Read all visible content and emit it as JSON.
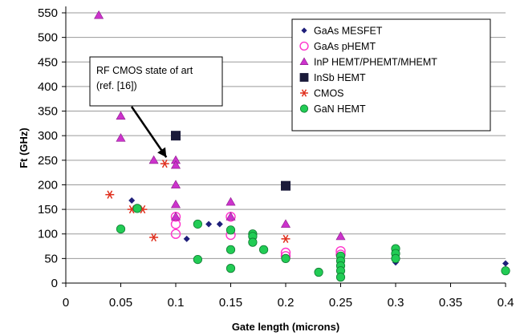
{
  "chart_data": {
    "type": "scatter",
    "xlabel": "Gate length (microns)",
    "ylabel": "Ft (GHz)",
    "xlim": [
      0,
      0.4
    ],
    "ylim": [
      0,
      550
    ],
    "x_ticks": [
      "0",
      "0.05",
      "0.1",
      "0.15",
      "0.2",
      "0.25",
      "0.3",
      "0.35",
      "0.4"
    ],
    "y_ticks": [
      "0",
      "50",
      "100",
      "150",
      "200",
      "250",
      "300",
      "350",
      "400",
      "450",
      "500",
      "550"
    ],
    "legend_position": "top-right",
    "annotation": {
      "lines": [
        "RF CMOS state of art",
        "(ref. [16])"
      ],
      "arrow_to": [
        0.09,
        243
      ]
    },
    "series": [
      {
        "name": "GaAs MESFET",
        "marker": "diamond",
        "color": "#1f1f7a",
        "points": [
          [
            0.06,
            168
          ],
          [
            0.11,
            90
          ],
          [
            0.13,
            120
          ],
          [
            0.14,
            120
          ],
          [
            0.25,
            55
          ],
          [
            0.3,
            42
          ],
          [
            0.4,
            40
          ]
        ]
      },
      {
        "name": "GaAs pHEMT",
        "marker": "open-circle",
        "color": "#ff33cc",
        "points": [
          [
            0.1,
            100
          ],
          [
            0.1,
            120
          ],
          [
            0.1,
            135
          ],
          [
            0.15,
            135
          ],
          [
            0.15,
            98
          ],
          [
            0.2,
            62
          ],
          [
            0.2,
            55
          ],
          [
            0.25,
            65
          ],
          [
            0.25,
            58
          ]
        ]
      },
      {
        "name": "InP HEMT/PHEMT/MHEMT",
        "marker": "triangle",
        "color": "#cc33cc",
        "points": [
          [
            0.03,
            545
          ],
          [
            0.05,
            340
          ],
          [
            0.05,
            295
          ],
          [
            0.08,
            250
          ],
          [
            0.1,
            250
          ],
          [
            0.1,
            240
          ],
          [
            0.1,
            200
          ],
          [
            0.1,
            160
          ],
          [
            0.1,
            135
          ],
          [
            0.15,
            165
          ],
          [
            0.15,
            135
          ],
          [
            0.2,
            120
          ],
          [
            0.25,
            95
          ]
        ]
      },
      {
        "name": "InSb HEMT",
        "marker": "square",
        "color": "#1a1a3a",
        "points": [
          [
            0.1,
            300
          ],
          [
            0.2,
            198
          ]
        ]
      },
      {
        "name": "CMOS",
        "marker": "asterisk",
        "color": "#e0301e",
        "points": [
          [
            0.04,
            180
          ],
          [
            0.06,
            150
          ],
          [
            0.07,
            150
          ],
          [
            0.08,
            93
          ],
          [
            0.09,
            243
          ],
          [
            0.2,
            90
          ]
        ]
      },
      {
        "name": "GaN HEMT",
        "marker": "filled-circle",
        "color": "#22cc55",
        "points": [
          [
            0.05,
            110
          ],
          [
            0.065,
            152
          ],
          [
            0.12,
            120
          ],
          [
            0.12,
            48
          ],
          [
            0.15,
            108
          ],
          [
            0.15,
            68
          ],
          [
            0.15,
            30
          ],
          [
            0.17,
            100
          ],
          [
            0.17,
            95
          ],
          [
            0.17,
            83
          ],
          [
            0.18,
            68
          ],
          [
            0.2,
            50
          ],
          [
            0.23,
            22
          ],
          [
            0.25,
            55
          ],
          [
            0.25,
            45
          ],
          [
            0.25,
            35
          ],
          [
            0.25,
            25
          ],
          [
            0.25,
            12
          ],
          [
            0.3,
            70
          ],
          [
            0.3,
            60
          ],
          [
            0.3,
            50
          ],
          [
            0.4,
            25
          ]
        ]
      }
    ]
  }
}
